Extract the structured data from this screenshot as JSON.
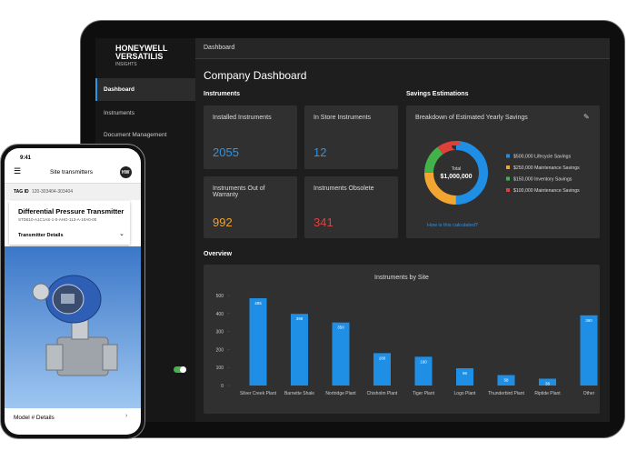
{
  "tablet": {
    "brand": "HONEYWELL",
    "brand_line2": "VERSATILIS",
    "brand_sub": "INSIGHTS",
    "breadcrumb": "Dashboard",
    "nav": [
      "Dashboard",
      "Instruments",
      "Document Management"
    ],
    "page_title": "Company Dashboard",
    "instruments": {
      "heading": "Instruments",
      "cards": [
        {
          "label": "Installed Instruments",
          "value": 2055
        },
        {
          "label": "In Store Instruments",
          "value": 12
        },
        {
          "label": "Instruments Out of Warranty",
          "value": 992
        },
        {
          "label": "Instruments Obsolete",
          "value": 341
        }
      ]
    },
    "savings": {
      "heading": "Savings Estimations",
      "card_title": "Breakdown of Estimated Yearly Savings",
      "link": "How is this calculated?"
    },
    "overview": {
      "heading": "Overview"
    }
  },
  "chart_data": [
    {
      "type": "bar",
      "title": "Instruments by Site",
      "categories": [
        "Silver Creek Plant",
        "Barnette Shale",
        "Nortridge Plant",
        "Chisholm Plant",
        "Tiger Plant",
        "Logo Plant",
        "Thunderbird Plant",
        "Riptide Plant",
        "Other"
      ],
      "values": [
        485,
        398,
        350,
        180,
        160,
        96,
        58,
        38,
        390
      ],
      "color": "#1f8fe6",
      "ylim": [
        0,
        500
      ],
      "yticks": [
        0,
        100,
        200,
        300,
        400,
        500
      ],
      "grid": false,
      "data_labels": true
    },
    {
      "type": "donut",
      "center_label": "Total",
      "center_value": "$1,000,000",
      "categories": [
        "$500,000 Lifecycle Savings",
        "$250,000 Maintenance Savings",
        "$150,000 Inventory Savings",
        "$100,000 Maintenance Savings"
      ],
      "values": [
        500000,
        250000,
        150000,
        100000
      ],
      "colors": [
        "#1f8fe6",
        "#f2a531",
        "#43b24b",
        "#e0403a"
      ]
    }
  ],
  "phone": {
    "time": "9:41",
    "title": "Site transmitters",
    "avatar": "HW",
    "tag_label": "TAG ID",
    "tag_value": "120-303404-303404",
    "product": "Differential Pressure Transmitter",
    "model_code": "STD810-A1C1AS-1-0-AHO-113-A-10A0-00",
    "details": "Transmitter Details",
    "footer": "Model # Details"
  }
}
